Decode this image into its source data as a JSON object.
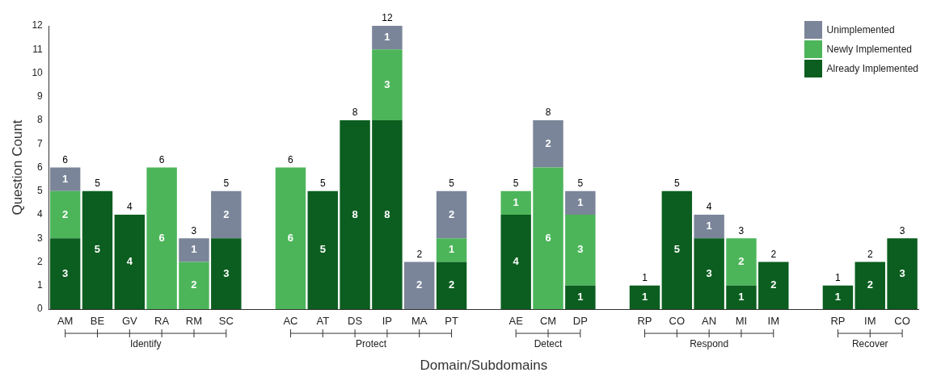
{
  "chart_data": {
    "type": "bar",
    "stacked": true,
    "xlabel": "Domain/Subdomains",
    "ylabel": "Question Count",
    "categories": [
      "AM",
      "BE",
      "GV",
      "RA",
      "RM",
      "SC",
      null,
      "AC",
      "AT",
      "DS",
      "IP",
      "MA",
      "PT",
      null,
      "AE",
      "CM",
      "DP",
      null,
      "RP",
      "CO",
      "AN",
      "MI",
      "IM",
      null,
      "RP",
      "IM",
      "CO"
    ],
    "series": [
      {
        "name": "Already Implemented",
        "color": "#0b5e1f",
        "values": [
          3,
          5,
          4,
          null,
          null,
          3,
          null,
          null,
          5,
          8,
          8,
          null,
          2,
          null,
          4,
          null,
          1,
          null,
          1,
          5,
          3,
          1,
          2,
          null,
          1,
          2,
          3
        ]
      },
      {
        "name": "Newly Implemented",
        "color": "#4cb55a",
        "values": [
          2,
          null,
          null,
          6,
          2,
          null,
          null,
          6,
          null,
          null,
          3,
          null,
          1,
          null,
          1,
          6,
          3,
          null,
          null,
          null,
          null,
          2,
          null,
          null,
          null,
          null,
          null
        ]
      },
      {
        "name": "Unimplemented",
        "color": "#7a8599",
        "values": [
          1,
          null,
          null,
          null,
          1,
          2,
          null,
          null,
          null,
          null,
          1,
          2,
          2,
          null,
          null,
          2,
          1,
          null,
          null,
          null,
          1,
          null,
          null,
          null,
          null,
          null,
          null
        ]
      }
    ],
    "totals": [
      "6",
      "5",
      "4",
      "6",
      "3",
      "5",
      null,
      "6",
      "5",
      "8",
      "12",
      "2",
      "5",
      null,
      "5",
      "8",
      "5",
      null,
      "1",
      "5",
      "4",
      "3",
      "2",
      null,
      "1",
      "2",
      "3"
    ],
    "annotations": [
      "Identify",
      "Protect",
      "Detect",
      "Respond",
      "Recover"
    ],
    "data_labels": true,
    "ylim": [
      0,
      12
    ],
    "yticks": [
      0,
      1,
      2,
      3,
      4,
      5,
      6,
      7,
      8,
      9,
      10,
      11,
      12
    ],
    "grid": false,
    "legend": "top right"
  }
}
